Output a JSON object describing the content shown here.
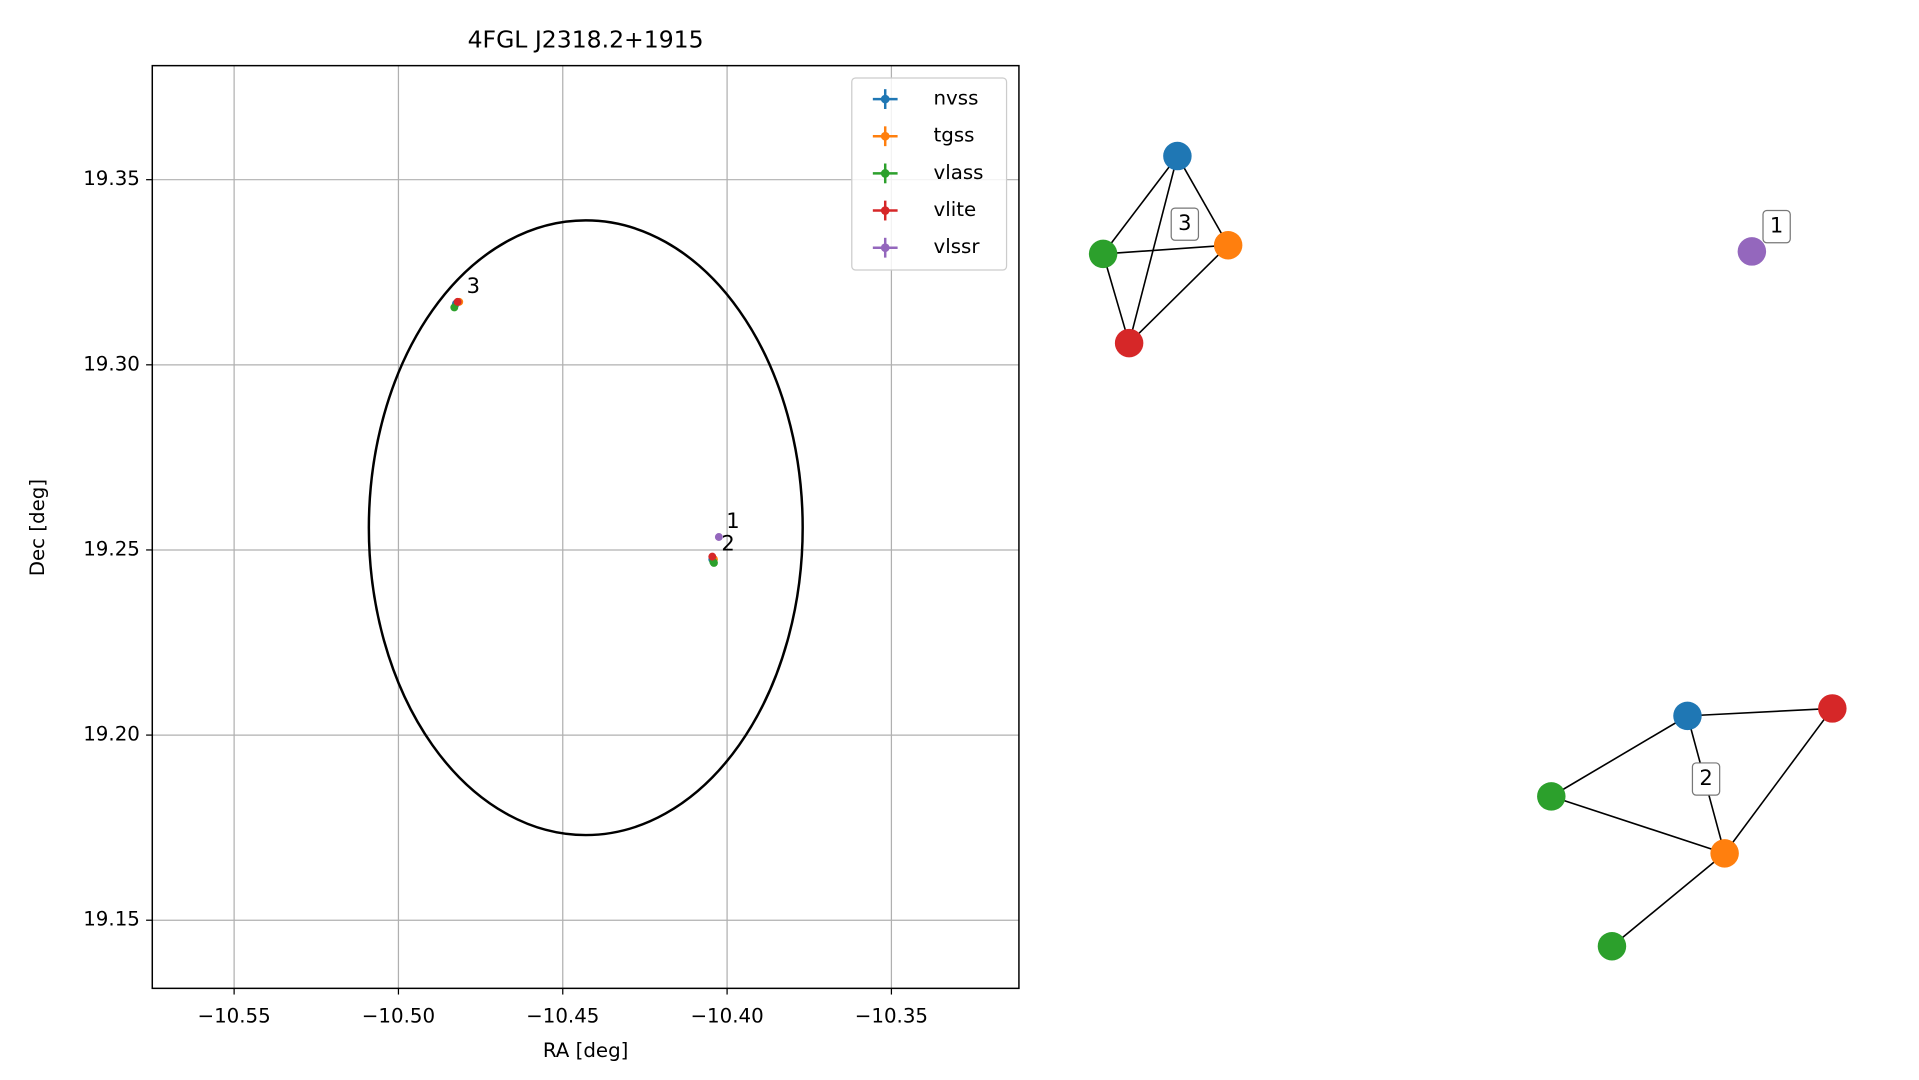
{
  "chart_data": {
    "type": "scatter",
    "title": "4FGL J2318.2+1915",
    "x_label": "RA [deg]",
    "y_label": "Dec [deg]",
    "xlim": [
      -10.5749,
      -10.3112
    ],
    "ylim": [
      19.1316,
      19.3808
    ],
    "xticks": [
      {
        "value": -10.55,
        "label": "−10.55"
      },
      {
        "value": -10.5,
        "label": "−10.50"
      },
      {
        "value": -10.45,
        "label": "−10.45"
      },
      {
        "value": -10.4,
        "label": "−10.40"
      },
      {
        "value": -10.35,
        "label": "−10.35"
      }
    ],
    "yticks": [
      19.15,
      {
        "value": 19.2,
        "label": "19.20"
      },
      19.25,
      {
        "value": 19.3,
        "label": "19.30"
      },
      19.35
    ],
    "grid": true,
    "legend": "upper right",
    "series": [
      {
        "name": "nvss",
        "color": "#1f77b4",
        "x": [
          -10.4825,
          -10.4045
        ],
        "y": [
          19.3165,
          19.2475
        ]
      },
      {
        "name": "tgss",
        "color": "#ff7f0e",
        "x": [
          -10.4815,
          -10.404
        ],
        "y": [
          19.317,
          19.2475
        ]
      },
      {
        "name": "vlass",
        "color": "#2ca02c",
        "x": [
          -10.483,
          -10.404,
          -10.4042
        ],
        "y": [
          19.3155,
          19.2465,
          19.2468
        ]
      },
      {
        "name": "vlite",
        "color": "#d62728",
        "x": [
          -10.482,
          -10.4045
        ],
        "y": [
          19.317,
          19.2482
        ]
      },
      {
        "name": "vlssr",
        "color": "#9467bd",
        "x": [
          -10.4025
        ],
        "y": [
          19.2535
        ]
      }
    ],
    "ellipse": {
      "center": [
        -10.443,
        19.256
      ],
      "width": 0.132,
      "height": 0.166
    },
    "annotations": [
      {
        "text": "1",
        "x": -10.4025,
        "y": 19.2535
      },
      {
        "text": "2",
        "x": -10.404,
        "y": 19.2475
      },
      {
        "text": "3",
        "x": -10.4815,
        "y": 19.317
      }
    ]
  }
}
